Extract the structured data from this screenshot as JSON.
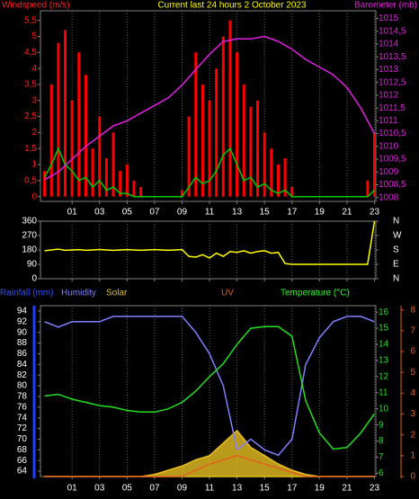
{
  "chart_data": [
    {
      "type": "combo",
      "title": "Current last 24 hours 2 October 2023",
      "y_label": "Windspeed (m/s)",
      "y2_label": "Barometer (mb)",
      "xlim": [
        -1.3,
        23.1
      ],
      "xticks": [
        {
          "value": 1,
          "label": "01"
        },
        {
          "value": 3,
          "label": "03"
        },
        {
          "value": 5,
          "label": "05"
        },
        {
          "value": 7,
          "label": "07"
        },
        {
          "value": 9,
          "label": "09"
        },
        11,
        13,
        15,
        17,
        19,
        21,
        23
      ],
      "ylim": [
        -0.15,
        5.8
      ],
      "yticks": [
        0,
        {
          "value": 0.5,
          "label": "0,5"
        },
        1,
        {
          "value": 1.5,
          "label": "1,5"
        },
        2,
        {
          "value": 2.5,
          "label": "2,5"
        },
        3,
        {
          "value": 3.5,
          "label": "3,5"
        },
        4,
        {
          "value": 4.5,
          "label": "4,5"
        },
        5,
        {
          "value": 5.5,
          "label": "5,5"
        }
      ],
      "y2lim": [
        1007.85,
        1015.3
      ],
      "y2ticks": [
        1008,
        {
          "value": 1008.5,
          "label": "1008,5"
        },
        1009,
        {
          "value": 1009.5,
          "label": "1009,5"
        },
        1010,
        {
          "value": 1010.5,
          "label": "1010,5"
        },
        1011,
        {
          "value": 1011.5,
          "label": "1011,5"
        },
        1012,
        {
          "value": 1012.5,
          "label": "1012,5"
        },
        1013,
        {
          "value": 1013.5,
          "label": "1013,5"
        },
        1014,
        {
          "value": 1014.5,
          "label": "1014,5"
        },
        1015
      ],
      "grid": true,
      "series": [
        {
          "type": "bar",
          "color": "#ff0000",
          "x": [
            -1,
            -0.5,
            0,
            0.5,
            1,
            1.5,
            2,
            2.5,
            3,
            3.5,
            4,
            4.5,
            5,
            5.5,
            6,
            6.5,
            7,
            7.5,
            8,
            8.5,
            9,
            9.5,
            10,
            10.5,
            11,
            11.5,
            12,
            12.5,
            13,
            13.5,
            14,
            14.5,
            15,
            15.5,
            16,
            16.5,
            17,
            17.5,
            18,
            18.5,
            19,
            19.5,
            20,
            20.5,
            21,
            21.5,
            22,
            22.5,
            23
          ],
          "values": [
            0.8,
            3.5,
            4.8,
            5.2,
            3.0,
            4.5,
            3.8,
            1.5,
            2.5,
            1.2,
            2.0,
            0.8,
            1.0,
            0.5,
            0.3,
            0,
            0,
            0,
            0,
            0,
            0.2,
            2.5,
            4.5,
            3.5,
            3.0,
            4.0,
            5.0,
            5.5,
            4.5,
            3.5,
            2.8,
            3.0,
            2.0,
            1.5,
            1.0,
            1.2,
            0.3,
            0,
            0,
            0,
            0,
            0,
            0,
            0,
            0,
            0,
            0,
            0.5,
            2.0
          ]
        },
        {
          "type": "line",
          "color": "#00cc00",
          "x": [
            -1,
            -0.5,
            0,
            0.5,
            1,
            1.5,
            2,
            2.5,
            3,
            3.5,
            4,
            4.5,
            5,
            5.5,
            6,
            6.5,
            7,
            7.5,
            8,
            8.5,
            9,
            9.5,
            10,
            10.5,
            11,
            11.5,
            12,
            12.5,
            13,
            13.5,
            14,
            14.5,
            15,
            15.5,
            16,
            16.5,
            17,
            17.5,
            18,
            18.5,
            19,
            19.5,
            20,
            20.5,
            21,
            21.5,
            22,
            22.5,
            23
          ],
          "values": [
            0.6,
            1.0,
            1.5,
            1.0,
            0.8,
            0.5,
            0.6,
            0.3,
            0.5,
            0.2,
            0.3,
            0.1,
            0.1,
            0,
            0,
            0,
            0,
            0,
            0,
            0,
            0,
            0.3,
            0.6,
            0.4,
            0.5,
            0.8,
            1.3,
            1.5,
            1.0,
            0.5,
            0.6,
            0.3,
            0.4,
            0.2,
            0.1,
            0.2,
            0,
            0,
            0,
            0,
            0,
            0,
            0,
            0,
            0,
            0,
            0,
            0,
            0.2
          ]
        },
        {
          "type": "line",
          "color": "#e020e0",
          "axis": "y2",
          "x": [
            -1,
            0,
            1,
            2,
            3,
            4,
            5,
            6,
            7,
            8,
            9,
            10,
            11,
            12,
            13,
            14,
            15,
            16,
            17,
            18,
            19,
            20,
            21,
            22,
            23
          ],
          "values": [
            1008.7,
            1009.0,
            1009.5,
            1010.0,
            1010.4,
            1010.8,
            1011.0,
            1011.3,
            1011.6,
            1011.9,
            1012.4,
            1013.0,
            1013.6,
            1014.1,
            1014.2,
            1014.2,
            1014.3,
            1014.1,
            1013.8,
            1013.4,
            1013.1,
            1012.8,
            1012.3,
            1011.5,
            1010.5
          ]
        }
      ]
    },
    {
      "type": "line",
      "xlim": [
        -1.3,
        23.1
      ],
      "xticks": [
        {
          "value": 1,
          "label": "01"
        },
        {
          "value": 3,
          "label": "03"
        },
        {
          "value": 5,
          "label": "05"
        },
        {
          "value": 7,
          "label": "07"
        },
        {
          "value": 9,
          "label": "09"
        },
        11,
        13,
        15,
        17,
        19,
        21,
        23
      ],
      "ylim": [
        0,
        360
      ],
      "yticks": [
        0,
        90,
        180,
        270,
        360
      ],
      "y2lim": [
        0,
        360
      ],
      "y2ticks": [
        {
          "value": 360,
          "label": "N"
        },
        {
          "value": 270,
          "label": "W"
        },
        {
          "value": 180,
          "label": "S"
        },
        {
          "value": 90,
          "label": "E"
        },
        {
          "value": 0,
          "label": "N"
        }
      ],
      "grid": true,
      "series": [
        {
          "type": "line",
          "color": "#ffff00",
          "x": [
            -1,
            -0.5,
            0,
            0.5,
            1,
            1.5,
            2,
            2.5,
            3,
            3.5,
            4,
            4.5,
            5,
            5.5,
            6,
            6.5,
            7,
            7.5,
            8,
            8.5,
            9,
            9.5,
            10,
            10.5,
            11,
            11.5,
            12,
            12.5,
            13,
            13.5,
            14,
            14.5,
            15,
            15.5,
            16,
            16.5,
            17,
            17.5,
            18,
            18.5,
            19,
            19.5,
            20,
            20.5,
            21,
            21.5,
            22,
            22.5,
            23
          ],
          "values": [
            175,
            180,
            185,
            178,
            180,
            182,
            178,
            180,
            183,
            180,
            177,
            180,
            182,
            180,
            178,
            180,
            182,
            180,
            178,
            180,
            182,
            140,
            135,
            150,
            130,
            160,
            140,
            170,
            165,
            175,
            160,
            170,
            175,
            160,
            165,
            95,
            90,
            90,
            90,
            90,
            90,
            90,
            90,
            90,
            90,
            90,
            90,
            90,
            360
          ]
        }
      ]
    },
    {
      "type": "combo",
      "rain_label": "Rainfall (mm)",
      "y2_label": "Temperature (°C)",
      "xlim": [
        -1.3,
        23.1
      ],
      "xticks": [
        {
          "value": 1,
          "label": "01"
        },
        {
          "value": 3,
          "label": "03"
        },
        {
          "value": 5,
          "label": "05"
        },
        {
          "value": 7,
          "label": "07"
        },
        {
          "value": 9,
          "label": "09"
        },
        11,
        13,
        15,
        17,
        19,
        21,
        23
      ],
      "ylim": [
        63,
        95
      ],
      "yticks": [
        64,
        66,
        68,
        70,
        72,
        74,
        76,
        78,
        80,
        82,
        84,
        86,
        88,
        90,
        92,
        94
      ],
      "y2lim": [
        5.8,
        16.4
      ],
      "y2ticks": [
        6,
        7,
        8,
        9,
        10,
        11,
        12,
        13,
        14,
        15,
        16
      ],
      "y3lim": [
        0,
        8.2
      ],
      "y3ticks": [
        0,
        1,
        2,
        3,
        4,
        5,
        6,
        7,
        8
      ],
      "grid": true,
      "x": [
        -1,
        0,
        1,
        2,
        3,
        4,
        5,
        6,
        7,
        8,
        9,
        10,
        11,
        12,
        13,
        14,
        15,
        16,
        17,
        18,
        19,
        20,
        21,
        22,
        23
      ],
      "series": [
        {
          "name": "Solar",
          "type": "area",
          "color": "#e8c020",
          "axis": "y3",
          "values": [
            0,
            0,
            0,
            0,
            0,
            0,
            0,
            0,
            0.1,
            0.3,
            0.5,
            0.8,
            1.0,
            1.6,
            2.2,
            1.4,
            1.0,
            0.6,
            0.3,
            0.1,
            0,
            0,
            0,
            0,
            0
          ]
        },
        {
          "name": "UV",
          "type": "line",
          "color": "#e06020",
          "axis": "y3",
          "values": [
            0,
            0,
            0,
            0,
            0,
            0,
            0,
            0,
            0,
            0,
            0,
            0.3,
            0.6,
            0.8,
            1.0,
            0.8,
            0.6,
            0.4,
            0.2,
            0,
            0,
            0,
            0,
            0,
            0
          ]
        },
        {
          "name": "Humidity",
          "type": "line",
          "color": "#8080ff",
          "values": [
            92,
            91,
            92,
            92,
            92,
            93,
            93,
            93,
            93,
            93,
            93,
            90,
            86,
            80,
            68,
            70,
            68,
            67,
            70,
            84,
            89,
            92,
            93,
            93,
            92
          ]
        },
        {
          "name": "Temperature (°C)",
          "type": "line",
          "color": "#20e020",
          "axis": "y2",
          "values": [
            10.8,
            10.9,
            10.6,
            10.4,
            10.2,
            10.1,
            9.9,
            9.8,
            9.8,
            10.0,
            10.4,
            11.1,
            12.0,
            12.8,
            14.0,
            15.0,
            15.1,
            15.1,
            14.5,
            10.5,
            8.5,
            7.5,
            7.6,
            8.5,
            9.7
          ]
        }
      ]
    }
  ]
}
